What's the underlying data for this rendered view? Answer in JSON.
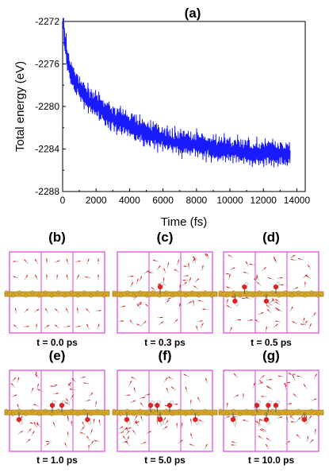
{
  "chart_data": {
    "type": "line",
    "panel_label": "(a)",
    "xlabel": "Time (fs)",
    "ylabel": "Total energy (eV)",
    "xlim": [
      0,
      14500
    ],
    "ylim": [
      -2288,
      -2272
    ],
    "xticks": [
      0,
      2000,
      4000,
      6000,
      8000,
      10000,
      12000,
      14000
    ],
    "xtick_labels": [
      "0",
      "2000",
      "4000",
      "6000",
      "8000",
      "10000",
      "12000",
      "14000"
    ],
    "yticks": [
      -2272,
      -2276,
      -2280,
      -2284,
      -2288
    ],
    "ytick_labels": [
      "-2272",
      "-2276",
      "-2280",
      "-2284",
      "-2288"
    ],
    "grid": false,
    "line_color": "#1a1aff",
    "trend": {
      "x": [
        0,
        100,
        200,
        300,
        400,
        500,
        700,
        1000,
        1500,
        2000,
        2500,
        3000,
        3500,
        4000,
        4500,
        5000,
        6000,
        7000,
        8000,
        9000,
        10000,
        11000,
        12000,
        13000,
        13600
      ],
      "y": [
        -2271.5,
        -2273.2,
        -2274.5,
        -2275.5,
        -2276.3,
        -2276.8,
        -2277.6,
        -2278.4,
        -2279.2,
        -2279.9,
        -2280.5,
        -2281.0,
        -2281.4,
        -2281.8,
        -2282.2,
        -2282.5,
        -2283.0,
        -2283.4,
        -2283.6,
        -2283.9,
        -2284.1,
        -2284.3,
        -2284.4,
        -2284.5,
        -2284.6
      ]
    },
    "fluctuation_amplitude_eV": 1.1,
    "series": [
      {
        "x_start": 0,
        "x_end": 13600,
        "samples": 900
      }
    ]
  },
  "snapshots": [
    {
      "label": "(b)",
      "time": "t = 0.0 ps",
      "waters": 36,
      "adsorbates": []
    },
    {
      "label": "(c)",
      "time": "t = 0.3 ps",
      "waters": 55,
      "adsorbates": [
        {
          "type": "OH",
          "pos": 0.45,
          "side": "top"
        }
      ]
    },
    {
      "label": "(d)",
      "time": "t = 0.5 ps",
      "waters": 55,
      "adsorbates": [
        {
          "type": "OH",
          "pos": 0.22,
          "side": "top"
        },
        {
          "type": "OH",
          "pos": 0.55,
          "side": "top"
        },
        {
          "type": "OH",
          "pos": 0.12,
          "side": "bottom"
        },
        {
          "type": "OH",
          "pos": 0.45,
          "side": "bottom"
        }
      ]
    },
    {
      "label": "(e)",
      "time": "t = 1.0 ps",
      "waters": 55,
      "adsorbates": [
        {
          "type": "OH",
          "pos": 0.45,
          "side": "top"
        },
        {
          "type": "OH",
          "pos": 0.55,
          "side": "top"
        },
        {
          "type": "OH",
          "pos": 0.1,
          "side": "bottom"
        },
        {
          "type": "OH",
          "pos": 0.82,
          "side": "bottom"
        }
      ]
    },
    {
      "label": "(f)",
      "time": "t = 5.0 ps",
      "waters": 55,
      "adsorbates": [
        {
          "type": "OH",
          "pos": 0.35,
          "side": "top"
        },
        {
          "type": "OH",
          "pos": 0.42,
          "side": "top"
        },
        {
          "type": "OH",
          "pos": 0.55,
          "side": "top"
        },
        {
          "type": "OH",
          "pos": 0.1,
          "side": "bottom"
        },
        {
          "type": "OH",
          "pos": 0.45,
          "side": "bottom"
        },
        {
          "type": "OH",
          "pos": 0.82,
          "side": "bottom"
        }
      ]
    },
    {
      "label": "(g)",
      "time": "t = 10.0 ps",
      "waters": 55,
      "adsorbates": [
        {
          "type": "OH",
          "pos": 0.35,
          "side": "top"
        },
        {
          "type": "OH",
          "pos": 0.47,
          "side": "top"
        },
        {
          "type": "OH",
          "pos": 0.55,
          "side": "top"
        },
        {
          "type": "OH",
          "pos": 0.1,
          "side": "bottom"
        },
        {
          "type": "OH",
          "pos": 0.45,
          "side": "bottom"
        },
        {
          "type": "OH",
          "pos": 0.85,
          "side": "bottom"
        }
      ]
    }
  ],
  "colors": {
    "box": "#e040e0",
    "carbon": "#d4a72c",
    "carbon_dark": "#8a6a10",
    "oxygen": "#e02020",
    "hydrogen": "#f0f0f0",
    "axis": "#000000"
  }
}
